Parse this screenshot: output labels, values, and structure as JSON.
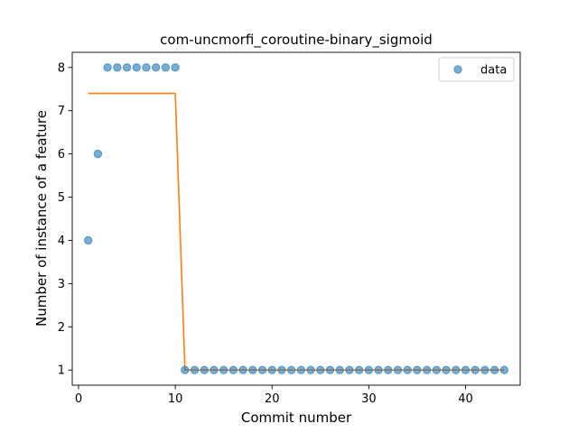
{
  "chart_data": {
    "type": "scatter",
    "title": "com-uncmorfi_coroutine-binary_sigmoid",
    "xlabel": "Commit number",
    "ylabel": "Number of instance of a feature",
    "xlim": [
      -0.65,
      45.65
    ],
    "ylim": [
      0.65,
      8.35
    ],
    "xticks": [
      0,
      10,
      20,
      30,
      40
    ],
    "yticks": [
      1,
      2,
      3,
      4,
      5,
      6,
      7,
      8
    ],
    "grid": false,
    "legend": {
      "position": "top-right",
      "entries": [
        "data"
      ]
    },
    "series": [
      {
        "name": "data",
        "type": "scatter",
        "color": "#1f77b4",
        "x": [
          1,
          2,
          3,
          4,
          5,
          6,
          7,
          8,
          9,
          10,
          11,
          12,
          13,
          14,
          15,
          16,
          17,
          18,
          19,
          20,
          21,
          22,
          23,
          24,
          25,
          26,
          27,
          28,
          29,
          30,
          31,
          32,
          33,
          34,
          35,
          36,
          37,
          38,
          39,
          40,
          41,
          42,
          43,
          44
        ],
        "y": [
          4,
          6,
          8,
          8,
          8,
          8,
          8,
          8,
          8,
          8,
          1,
          1,
          1,
          1,
          1,
          1,
          1,
          1,
          1,
          1,
          1,
          1,
          1,
          1,
          1,
          1,
          1,
          1,
          1,
          1,
          1,
          1,
          1,
          1,
          1,
          1,
          1,
          1,
          1,
          1,
          1,
          1,
          1,
          1
        ]
      },
      {
        "type": "line",
        "color": "#ff7f0e",
        "x": [
          1,
          2,
          3,
          4,
          5,
          6,
          7,
          8,
          9,
          10,
          11,
          12,
          13,
          14,
          15,
          16,
          17,
          18,
          19,
          20,
          21,
          22,
          23,
          24,
          25,
          26,
          27,
          28,
          29,
          30,
          31,
          32,
          33,
          34,
          35,
          36,
          37,
          38,
          39,
          40,
          41,
          42,
          43,
          44
        ],
        "y": [
          7.4,
          7.4,
          7.4,
          7.4,
          7.4,
          7.4,
          7.4,
          7.4,
          7.4,
          7.4,
          1,
          1,
          1,
          1,
          1,
          1,
          1,
          1,
          1,
          1,
          1,
          1,
          1,
          1,
          1,
          1,
          1,
          1,
          1,
          1,
          1,
          1,
          1,
          1,
          1,
          1,
          1,
          1,
          1,
          1,
          1,
          1,
          1,
          1
        ]
      }
    ]
  }
}
